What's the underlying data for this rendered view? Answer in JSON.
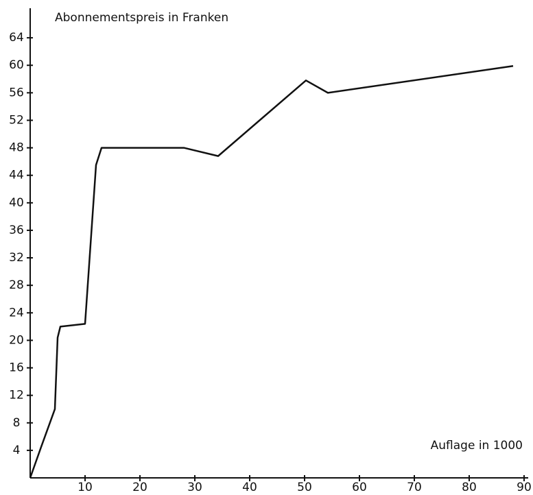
{
  "chart_data": {
    "type": "line",
    "y_label": "Abonnementspreis in Franken",
    "x_label": "Auflage in 1000",
    "x": [
      0,
      2,
      4.5,
      5,
      5.5,
      10,
      12,
      13,
      28,
      34.25,
      50.25,
      54.25,
      88
    ],
    "series": [
      {
        "color": "#111111",
        "values": [
          0,
          4.5,
          10,
          20.4,
          22,
          22.4,
          45.5,
          48,
          48,
          46.8,
          57.8,
          56,
          59.9
        ]
      }
    ],
    "xlim": [
      0,
      90
    ],
    "ylim": [
      0,
      68
    ],
    "xticks": [
      10,
      20,
      30,
      40,
      50,
      60,
      70,
      80,
      90
    ],
    "yticks": [
      4,
      8,
      12,
      16,
      20,
      24,
      28,
      32,
      36,
      40,
      44,
      48,
      52,
      56,
      60,
      64
    ],
    "grid": false
  }
}
